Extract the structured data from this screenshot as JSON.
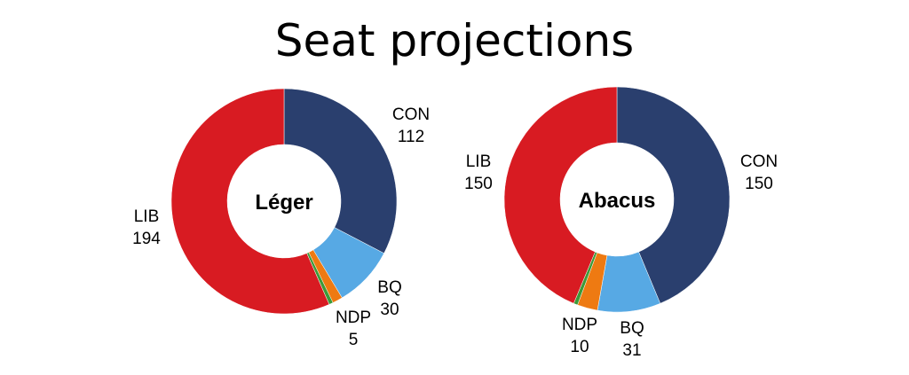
{
  "title": "Seat projections",
  "colors": {
    "CON": "#2a3f6e",
    "LIB": "#d81b22",
    "BQ": "#57a9e4",
    "NDP": "#ee7a12",
    "GRN": "#3c9a38",
    "background": "#ffffff"
  },
  "chart_data": [
    {
      "type": "pie",
      "variant": "donut",
      "center_label": "Léger",
      "slices": [
        {
          "party": "CON",
          "value": 112,
          "label": "CON",
          "value_label": "112"
        },
        {
          "party": "BQ",
          "value": 30,
          "label": "BQ",
          "value_label": "30"
        },
        {
          "party": "NDP",
          "value": 5,
          "label": "NDP",
          "value_label": "5"
        },
        {
          "party": "GRN",
          "value": 2,
          "label": "",
          "value_label": ""
        },
        {
          "party": "LIB",
          "value": 194,
          "label": "LIB",
          "value_label": "194"
        }
      ]
    },
    {
      "type": "pie",
      "variant": "donut",
      "center_label": "Abacus",
      "slices": [
        {
          "party": "CON",
          "value": 150,
          "label": "CON",
          "value_label": "150"
        },
        {
          "party": "BQ",
          "value": 31,
          "label": "BQ",
          "value_label": "31"
        },
        {
          "party": "NDP",
          "value": 10,
          "label": "NDP",
          "value_label": "10"
        },
        {
          "party": "GRN",
          "value": 2,
          "label": "",
          "value_label": ""
        },
        {
          "party": "LIB",
          "value": 150,
          "label": "LIB",
          "value_label": "150"
        }
      ]
    }
  ]
}
